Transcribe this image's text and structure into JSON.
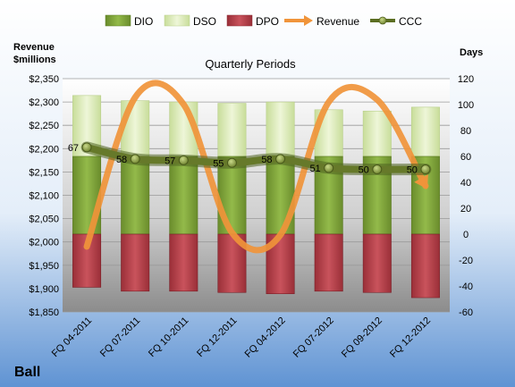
{
  "company": "Ball",
  "chart_data": {
    "type": "bar",
    "title": "Quarterly Periods",
    "left_axis_label_line1": "Revenue",
    "left_axis_label_line2": "$millions",
    "right_axis_label": "Days",
    "categories": [
      "FQ 04-2011",
      "FQ 07-2011",
      "FQ 10-2011",
      "FQ 12-2011",
      "FQ 04-2012",
      "FQ 07-2012",
      "FQ 09-2012",
      "FQ 12-2012"
    ],
    "left_ylim": [
      1850,
      2350
    ],
    "left_ticks": [
      "$1,850",
      "$1,900",
      "$1,950",
      "$2,000",
      "$2,050",
      "$2,100",
      "$2,150",
      "$2,200",
      "$2,250",
      "$2,300",
      "$2,350"
    ],
    "right_ylim": [
      -60,
      120
    ],
    "right_ticks": [
      "-60",
      "-40",
      "-20",
      "0",
      "20",
      "40",
      "60",
      "80",
      "100",
      "120"
    ],
    "legend": [
      "DIO",
      "DSO",
      "DPO",
      "Revenue",
      "CCC"
    ],
    "series": [
      {
        "name": "DIO",
        "axis": "right",
        "values": [
          60,
          60,
          60,
          60,
          60,
          60,
          60,
          60
        ],
        "color": "#7ea33a"
      },
      {
        "name": "DSO",
        "axis": "right",
        "values": [
          47,
          43,
          42,
          41,
          42,
          36,
          35,
          38
        ],
        "color": "#dbecb5"
      },
      {
        "name": "DPO",
        "axis": "right",
        "values": [
          -41,
          -44,
          -44,
          -45,
          -46,
          -44,
          -45,
          -49
        ],
        "color": "#b5404a"
      },
      {
        "name": "Revenue",
        "axis": "left",
        "values": [
          1990,
          2310,
          2295,
          2020,
          2015,
          2300,
          2305,
          2120
        ],
        "color": "#f0943a"
      },
      {
        "name": "CCC",
        "axis": "right",
        "values": [
          67,
          58,
          57,
          55,
          58,
          51,
          50,
          50
        ],
        "labels": [
          "67",
          "58",
          "57",
          "55",
          "58",
          "51",
          "50",
          "50"
        ],
        "color": "#5b6e22"
      }
    ],
    "grid": true,
    "legend_position": "top"
  }
}
